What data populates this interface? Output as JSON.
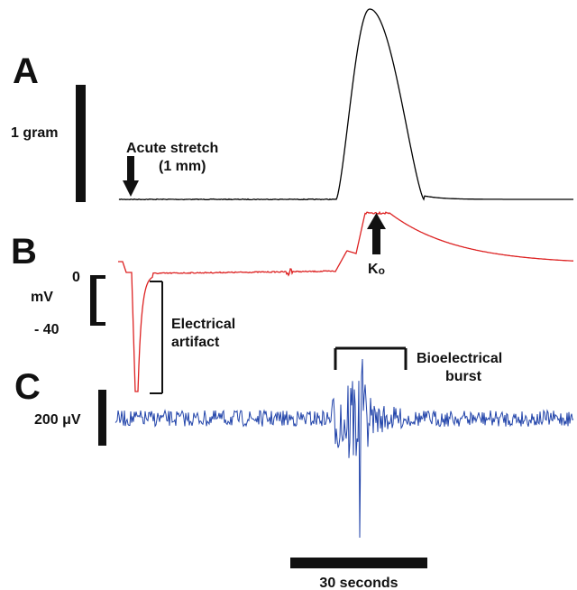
{
  "chart_data": {
    "type": "line",
    "panels": [
      {
        "letter": "A",
        "signal": "tension",
        "scale_bar_label": "1 gram",
        "color": "#000000",
        "annotation": "Acute stretch (1 mm)",
        "annotation_lines": [
          "Acute stretch",
          "(1 mm)"
        ]
      },
      {
        "letter": "B",
        "signal": "membrane potential",
        "color": "#dd2222",
        "scale_top_label": "0",
        "scale_unit_label": "mV",
        "scale_bottom_label": "- 40",
        "artifact_label_lines": [
          "Electrical",
          "artifact"
        ],
        "arrow_label": "Ko"
      },
      {
        "letter": "C",
        "signal": "bioelectrical activity",
        "scale_bar_label": "200 μV",
        "color": "#2244aa",
        "burst_label_lines": [
          "Bioelectrical",
          "burst"
        ]
      }
    ],
    "time_scale_bar": {
      "label": "30 seconds",
      "duration_s": 30
    }
  }
}
